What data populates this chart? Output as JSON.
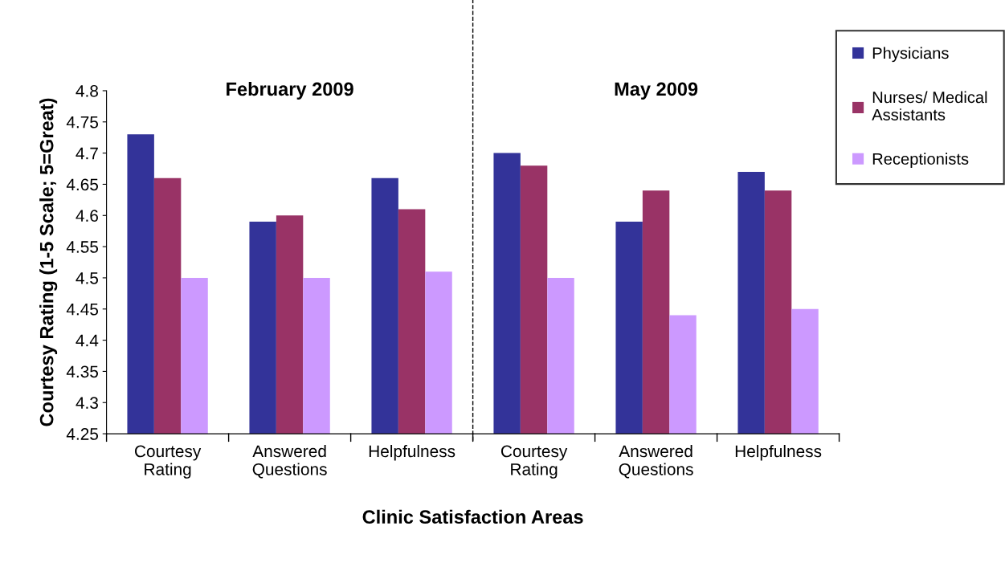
{
  "chart_data": {
    "type": "bar",
    "xlabel": "Clinic Satisfaction Areas",
    "ylabel": "Courtesy Rating (1-5 Scale; 5=Great)",
    "categories": [
      "Courtesy\nRating",
      "Answered\nQuestions",
      "Helpfulness",
      "Courtesy\nRating",
      "Answered\nQuestions",
      "Helpfulness"
    ],
    "series": [
      {
        "name": "Physicians",
        "color": "#333399",
        "values": [
          4.73,
          4.59,
          4.66,
          4.7,
          4.59,
          4.67
        ]
      },
      {
        "name": "Nurses/ Medical\nAssistants",
        "color": "#993366",
        "values": [
          4.66,
          4.6,
          4.61,
          4.68,
          4.64,
          4.64
        ]
      },
      {
        "name": "Receptionists",
        "color": "#cc99ff",
        "values": [
          4.5,
          4.5,
          4.51,
          4.5,
          4.44,
          4.45
        ]
      }
    ],
    "ylim": [
      4.25,
      4.8
    ],
    "yticks": [
      4.25,
      4.3,
      4.35,
      4.4,
      4.45,
      4.5,
      4.55,
      4.6,
      4.65,
      4.7,
      4.75,
      4.8
    ],
    "annotations": [
      "February 2009",
      "May 2009"
    ],
    "legend": "right",
    "grid": false
  }
}
